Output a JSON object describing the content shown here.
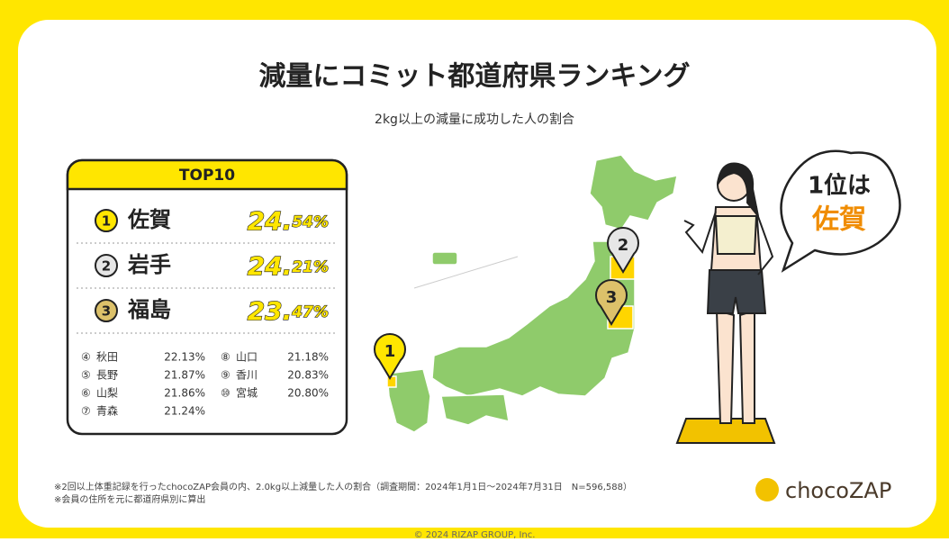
{
  "header": {
    "title": "減量にコミット都道府県ランキング",
    "subtitle": "2kg以上の減量に成功した人の割合"
  },
  "ranking": {
    "heading": "TOP10",
    "top": [
      {
        "rank": "1",
        "name": "佐賀",
        "value_main": "24.",
        "value_sub": "54%"
      },
      {
        "rank": "2",
        "name": "岩手",
        "value_main": "24.",
        "value_sub": "21%"
      },
      {
        "rank": "3",
        "name": "福島",
        "value_main": "23.",
        "value_sub": "47%"
      }
    ],
    "others": [
      {
        "rank": "④",
        "name": "秋田",
        "value": "22.13%"
      },
      {
        "rank": "⑤",
        "name": "長野",
        "value": "21.87%"
      },
      {
        "rank": "⑥",
        "name": "山梨",
        "value": "21.86%"
      },
      {
        "rank": "⑦",
        "name": "青森",
        "value": "21.24%"
      },
      {
        "rank": "⑧",
        "name": "山口",
        "value": "21.18%"
      },
      {
        "rank": "⑨",
        "name": "香川",
        "value": "20.83%"
      },
      {
        "rank": "⑩",
        "name": "宮城",
        "value": "20.80%"
      }
    ]
  },
  "map": {
    "pins": [
      "1",
      "2",
      "3"
    ]
  },
  "bubble": {
    "line1": "1位は",
    "line2": "佐賀"
  },
  "notes": [
    "※2回以上体重記録を行ったchocoZAP会員の内、2.0kg以上減量した人の割合（調査期間：2024年1月1日〜2024年7月31日　N=596,588）",
    "※会員の住所を元に都道府県別に算出"
  ],
  "logo": "chocoZAP",
  "copyright": "© 2024 RIZAP GROUP, Inc."
}
